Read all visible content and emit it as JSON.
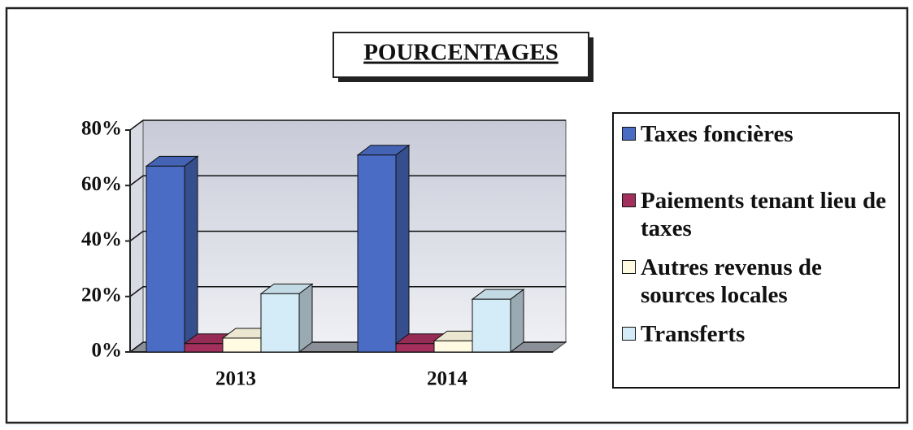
{
  "chart_data": {
    "type": "bar3d",
    "title": "POURCENTAGES",
    "categories": [
      "2013",
      "2014"
    ],
    "series": [
      {
        "name": "Taxes foncières",
        "color": "#4a6cc4",
        "values": [
          67,
          71
        ]
      },
      {
        "name": "Paiements tenant lieu de taxes",
        "color": "#a3305c",
        "values": [
          3,
          3
        ]
      },
      {
        "name": "Autres revenus de sources locales",
        "color": "#fffbe2",
        "values": [
          5,
          4
        ]
      },
      {
        "name": "Transferts",
        "color": "#d4ecf8",
        "values": [
          21,
          19
        ]
      }
    ],
    "ylim": [
      0,
      80
    ],
    "yticks": [
      {
        "value": 0,
        "label": "0%"
      },
      {
        "value": 20,
        "label": "20%"
      },
      {
        "value": 40,
        "label": "40%"
      },
      {
        "value": 60,
        "label": "60%"
      },
      {
        "value": 80,
        "label": "80%"
      }
    ],
    "grid": true,
    "legend": "right"
  }
}
